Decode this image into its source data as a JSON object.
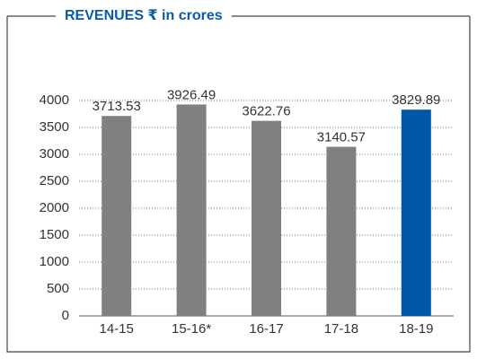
{
  "chart_data": {
    "type": "bar",
    "title": "REVENUES ₹ in crores",
    "categories": [
      "14-15",
      "15-16*",
      "16-17",
      "17-18",
      "18-19"
    ],
    "values": [
      3713.53,
      3926.49,
      3622.76,
      3140.57,
      3829.89
    ],
    "colors": [
      "#808080",
      "#808080",
      "#808080",
      "#808080",
      "#0057a8"
    ],
    "ylim": [
      0,
      4000
    ],
    "yticks": [
      0,
      500,
      1000,
      1500,
      2000,
      2500,
      3000,
      3500,
      4000
    ],
    "grid": true
  }
}
